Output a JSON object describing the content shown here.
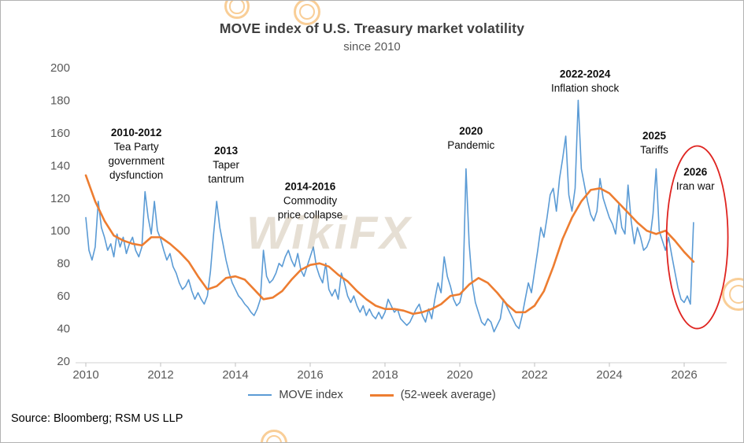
{
  "chart_data": {
    "type": "line",
    "title": "MOVE index of U.S. Treasury market volatility",
    "subtitle": "since 2010",
    "xlabel": "",
    "ylabel": "",
    "x_range": [
      2010,
      2027.1
    ],
    "y_range": [
      20,
      200
    ],
    "x_ticks": [
      2010,
      2012,
      2014,
      2016,
      2018,
      2020,
      2022,
      2024,
      2026
    ],
    "y_ticks": [
      20,
      40,
      60,
      80,
      100,
      120,
      140,
      160,
      180,
      200
    ],
    "grid": false,
    "legend_position": "bottom",
    "series": [
      {
        "name": "MOVE index",
        "color": "#5B9BD5",
        "x_start": 2010.0,
        "x_step": 0.083333,
        "values": [
          108,
          88,
          82,
          90,
          118,
          102,
          96,
          88,
          92,
          84,
          98,
          90,
          96,
          86,
          92,
          96,
          88,
          84,
          90,
          124,
          108,
          98,
          118,
          100,
          95,
          88,
          82,
          86,
          78,
          74,
          68,
          64,
          66,
          70,
          63,
          58,
          62,
          58,
          55,
          60,
          75,
          98,
          118,
          102,
          92,
          82,
          74,
          68,
          64,
          60,
          58,
          55,
          53,
          50,
          48,
          52,
          58,
          88,
          72,
          68,
          70,
          74,
          80,
          78,
          84,
          88,
          82,
          78,
          86,
          76,
          72,
          78,
          84,
          90,
          78,
          72,
          68,
          80,
          64,
          60,
          64,
          58,
          74,
          68,
          60,
          56,
          60,
          54,
          50,
          54,
          48,
          52,
          48,
          46,
          50,
          46,
          50,
          58,
          54,
          50,
          52,
          46,
          44,
          42,
          44,
          48,
          52,
          55,
          48,
          44,
          52,
          46,
          58,
          68,
          62,
          84,
          72,
          66,
          58,
          54,
          56,
          64,
          138,
          92,
          68,
          56,
          50,
          44,
          42,
          46,
          44,
          38,
          42,
          46,
          58,
          54,
          50,
          46,
          42,
          40,
          48,
          58,
          68,
          62,
          75,
          88,
          102,
          96,
          108,
          122,
          126,
          112,
          132,
          144,
          158,
          122,
          112,
          126,
          180,
          138,
          128,
          118,
          110,
          106,
          112,
          132,
          120,
          114,
          108,
          104,
          98,
          116,
          102,
          98,
          128,
          106,
          92,
          102,
          96,
          88,
          90,
          95,
          110,
          138,
          100,
          94,
          88,
          96,
          85,
          75,
          65,
          58,
          56,
          60,
          55,
          105
        ]
      },
      {
        "name": "(52-week average)",
        "color": "#ED7D31",
        "x_start": 2010.0,
        "x_step": 0.25,
        "values": [
          134,
          118,
          106,
          97,
          94,
          92,
          91,
          96,
          96,
          92,
          87,
          81,
          72,
          64,
          66,
          71,
          72,
          70,
          64,
          58,
          59,
          63,
          70,
          76,
          79,
          80,
          78,
          73,
          69,
          63,
          58,
          54,
          52,
          52,
          51,
          49,
          50,
          52,
          55,
          60,
          61,
          67,
          71,
          68,
          62,
          55,
          50,
          50,
          54,
          63,
          78,
          95,
          108,
          118,
          125,
          126,
          123,
          117,
          111,
          105,
          100,
          98,
          100,
          94,
          87,
          81
        ]
      }
    ],
    "annotations": [
      {
        "lines": [
          "2010-2012",
          "Tea Party",
          "government",
          "dysfunction"
        ],
        "x": 2011.35,
        "y": 158
      },
      {
        "lines": [
          "2013",
          "Taper",
          "tantrum"
        ],
        "x": 2013.75,
        "y": 147
      },
      {
        "lines": [
          "2014-2016",
          "Commodity",
          "price collapse"
        ],
        "x": 2016.0,
        "y": 125
      },
      {
        "lines": [
          "2020",
          "Pandemic"
        ],
        "x": 2020.3,
        "y": 159
      },
      {
        "lines": [
          "2022-2024",
          "Inflation shock"
        ],
        "x": 2023.35,
        "y": 194
      },
      {
        "lines": [
          "2025",
          "Tariffs"
        ],
        "x": 2025.2,
        "y": 156
      },
      {
        "lines": [
          "2026",
          "Iran war"
        ],
        "x": 2026.3,
        "y": 134
      }
    ],
    "highlight_ellipse": {
      "x": 2026.35,
      "y": 96,
      "rx_years": 0.82,
      "ry_value": 56,
      "color": "#df2420"
    }
  },
  "legend": {
    "items": [
      {
        "label": "MOVE index"
      },
      {
        "label": "(52-week average)"
      }
    ]
  },
  "source": "Source: Bloomberg; RSM US LLP",
  "watermark": {
    "text": "WikiFX"
  }
}
